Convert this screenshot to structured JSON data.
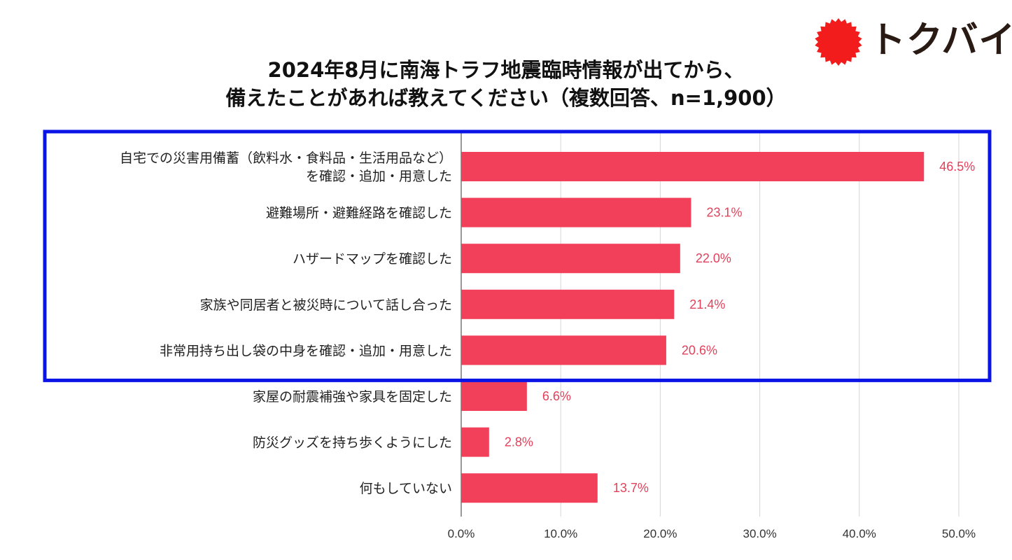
{
  "logo": {
    "text": "トクバイ",
    "mark_color": "#f21c1c",
    "text_color": "#2a1a14"
  },
  "title": {
    "line1": "2024年8月に南海トラフ地震臨時情報が出てから、",
    "line2": "備えたことがあれば教えてください（複数回答、n=1,900）"
  },
  "chart_data": {
    "type": "bar",
    "orientation": "horizontal",
    "title": "2024年8月に南海トラフ地震臨時情報が出てから、備えたことがあれば教えてください（複数回答、n=1,900）",
    "categories": [
      [
        "自宅での災害用備蓄（飲料水・食料品・生活用品など）",
        "を確認・追加・用意した"
      ],
      [
        "避難場所・避難経路を確認した"
      ],
      [
        "ハザードマップを確認した"
      ],
      [
        "家族や同居者と被災時について話し合った"
      ],
      [
        "非常用持ち出し袋の中身を確認・追加・用意した"
      ],
      [
        "家屋の耐震補強や家具を固定した"
      ],
      [
        "防災グッズを持ち歩くようにした"
      ],
      [
        "何もしていない"
      ]
    ],
    "values": [
      46.5,
      23.1,
      22.0,
      21.4,
      20.6,
      6.6,
      2.8,
      13.7
    ],
    "value_labels": [
      "46.5%",
      "23.1%",
      "22.0%",
      "21.4%",
      "20.6%",
      "6.6%",
      "2.8%",
      "13.7%"
    ],
    "xlim": [
      0,
      50
    ],
    "ticks": [
      0,
      10,
      20,
      30,
      40,
      50
    ],
    "tick_labels": [
      "0.0%",
      "10.0%",
      "20.0%",
      "30.0%",
      "40.0%",
      "50.0%"
    ],
    "grid": "vertical",
    "bar_color": "#f2405a",
    "label_color": "#e4405a",
    "highlight": {
      "first_index": 0,
      "last_index": 4,
      "color": "#0a14e6"
    }
  }
}
